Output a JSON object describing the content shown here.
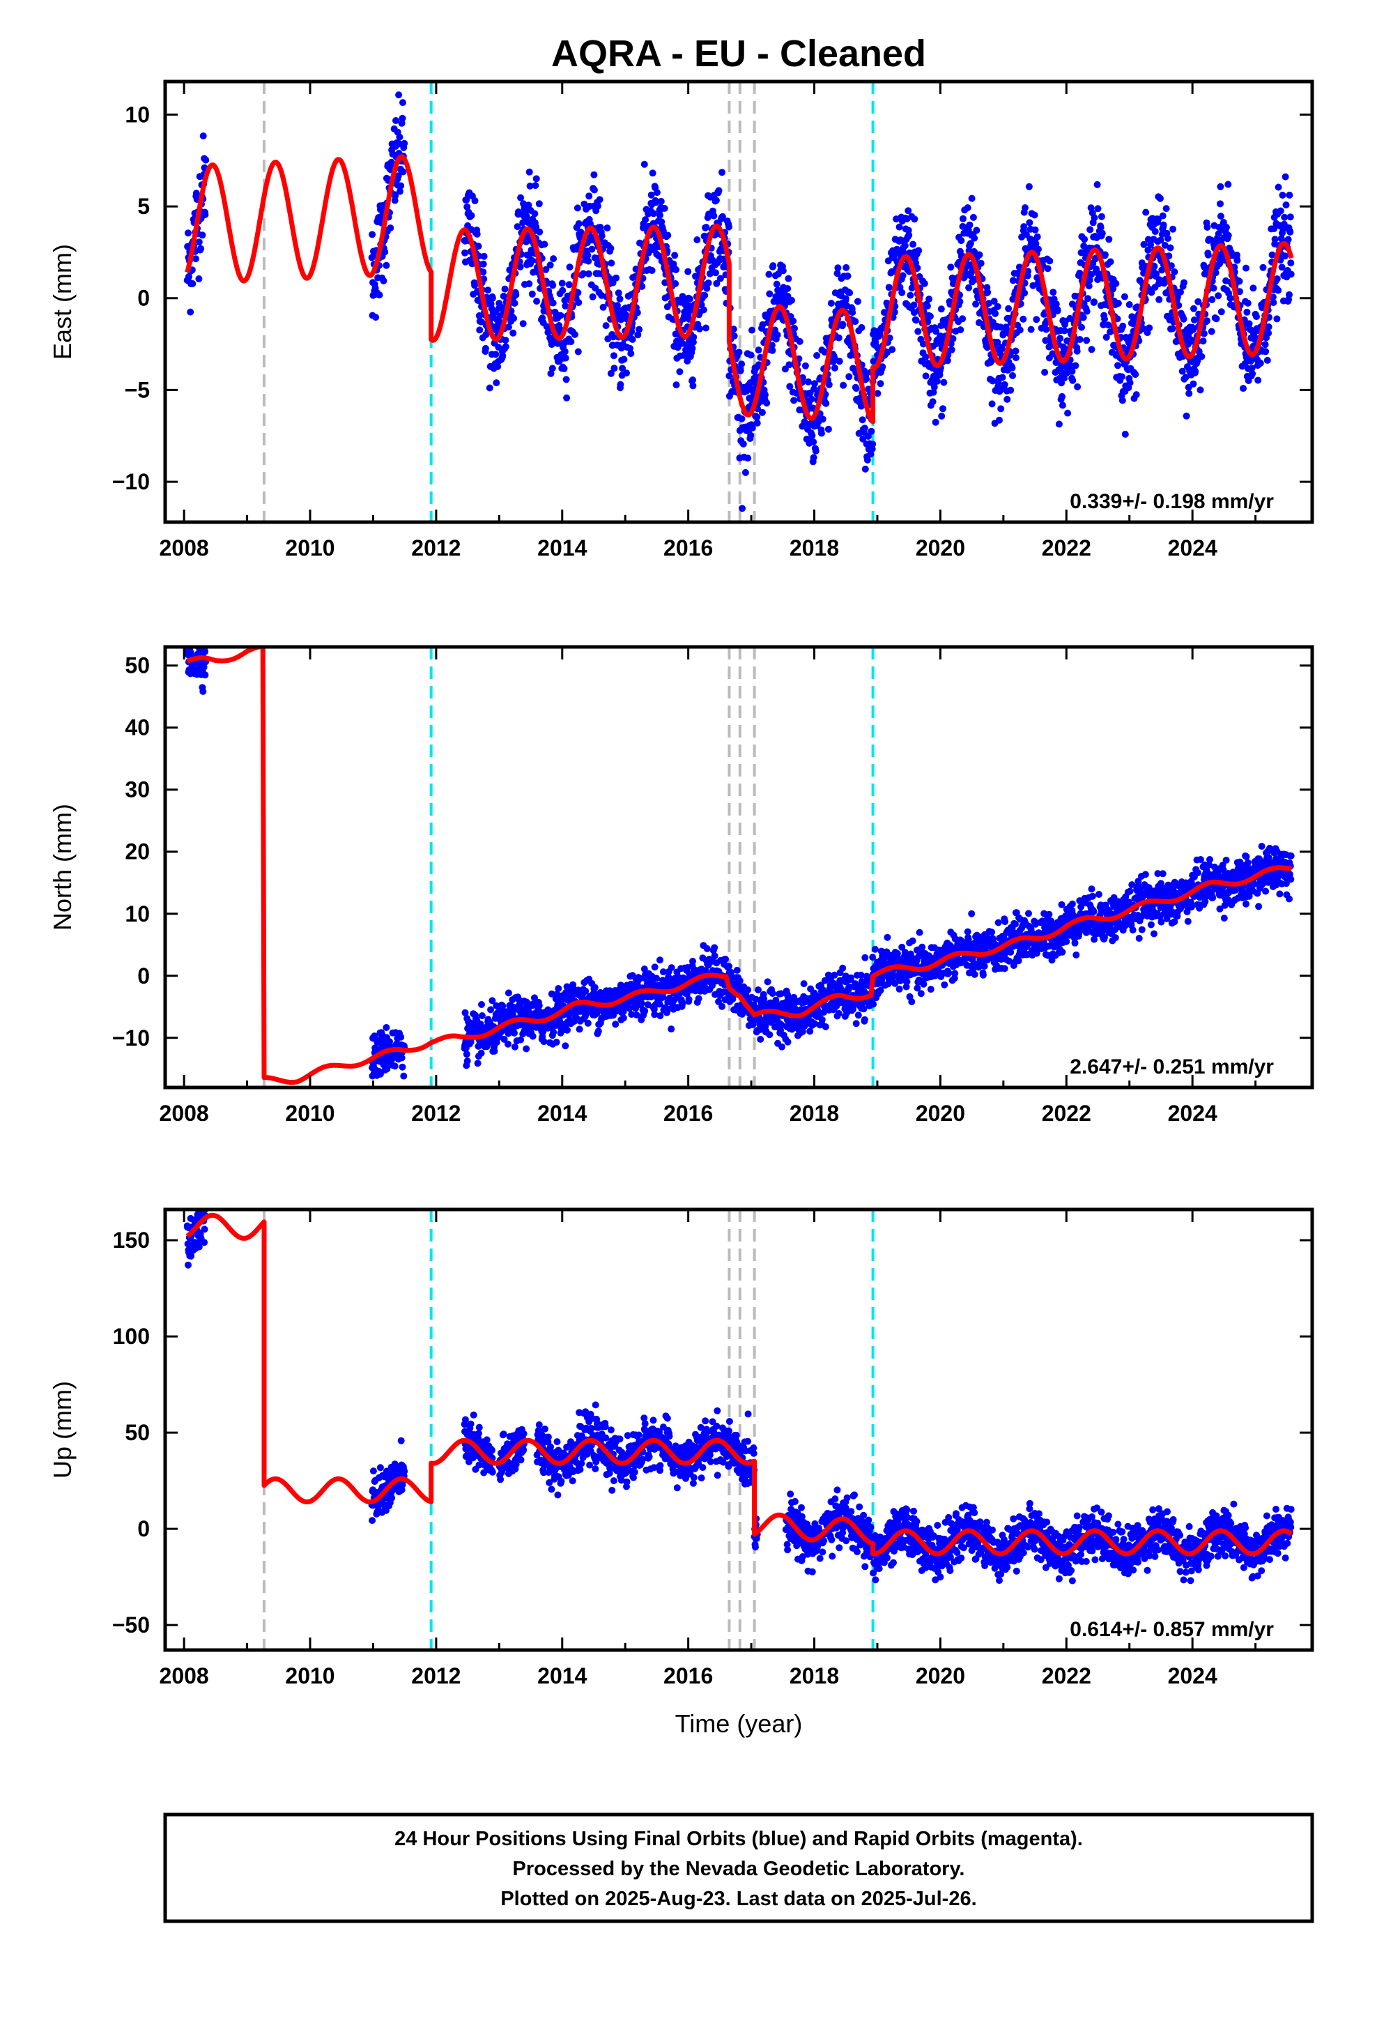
{
  "title": "AQRA  - EU - Cleaned",
  "xlabel": "Time (year)",
  "footer": {
    "lines": [
      "24 Hour Positions Using Final Orbits (blue) and Rapid Orbits (magenta).",
      "Processed by the Nevada Geodetic Laboratory.",
      "Plotted on 2025-Aug-23. Last data on 2025-Jul-26."
    ]
  },
  "colors": {
    "data": "#0000ff",
    "model": "#ff0000",
    "break_equipment": "#00e5ee",
    "break_earthquake": "#bbbbbb"
  },
  "chart_data": [
    {
      "type": "scatter",
      "component": "East",
      "ylabel": "East (mm)",
      "rate": "0.339+/- 0.198 mm/yr",
      "xlim": [
        2007.7,
        2025.9
      ],
      "ylim": [
        -12.2,
        11.8
      ],
      "xticks": [
        2008,
        2010,
        2012,
        2014,
        2016,
        2018,
        2020,
        2022,
        2024
      ],
      "yticks": [
        -10,
        -5,
        0,
        5,
        10
      ],
      "ytick_labels": [
        "−10",
        "−5",
        "0",
        "5",
        "10"
      ],
      "breaks_equipment": [
        2011.92,
        2018.93
      ],
      "breaks_earthquake": [
        2009.27,
        2016.65,
        2016.82,
        2017.05
      ],
      "data_segments": [
        [
          2008.05,
          2008.35
        ],
        [
          2010.98,
          2011.5
        ],
        [
          2012.45,
          2025.57
        ]
      ],
      "model_segments": [
        {
          "x0": 2008.05,
          "x1": 2011.92,
          "offset": 4.0,
          "amp": 3.2,
          "trend": 0.15
        },
        {
          "x0": 2011.92,
          "x1": 2016.65,
          "offset": 0.7,
          "amp": 3.0,
          "trend": 0.05
        },
        {
          "x0": 2016.65,
          "x1": 2018.93,
          "offset": -3.3,
          "amp": 3.0,
          "trend": -0.2
        },
        {
          "x0": 2018.93,
          "x1": 2025.57,
          "offset": -0.8,
          "amp": 3.0,
          "trend": 0.12
        }
      ],
      "scatter_sd": 1.4
    },
    {
      "type": "scatter",
      "component": "North",
      "ylabel": "North (mm)",
      "rate": "2.647+/- 0.251 mm/yr",
      "xlim": [
        2007.7,
        2025.9
      ],
      "ylim": [
        -18,
        53
      ],
      "xticks": [
        2008,
        2010,
        2012,
        2014,
        2016,
        2018,
        2020,
        2022,
        2024
      ],
      "yticks": [
        -10,
        0,
        10,
        20,
        30,
        40,
        50
      ],
      "ytick_labels": [
        "−10",
        "0",
        "10",
        "20",
        "30",
        "40",
        "50"
      ],
      "breaks_equipment": [
        2011.92,
        2018.93
      ],
      "breaks_earthquake": [
        2009.27,
        2016.65,
        2016.82,
        2017.05
      ],
      "data_segments": [
        [
          2008.05,
          2008.35
        ],
        [
          2010.98,
          2011.5
        ],
        [
          2012.45,
          2025.57
        ]
      ],
      "model_points": [
        [
          2008.05,
          50.5
        ],
        [
          2008.5,
          50.8
        ],
        [
          2009.0,
          52.3
        ],
        [
          2009.25,
          52.5
        ],
        [
          2009.27,
          -17.0
        ],
        [
          2009.8,
          -16.5
        ],
        [
          2010.6,
          -14.2
        ],
        [
          2011.5,
          -12.0
        ],
        [
          2011.92,
          -10.5
        ],
        [
          2012.4,
          -10.2
        ],
        [
          2013.0,
          -8.3
        ],
        [
          2013.6,
          -7.0
        ],
        [
          2014.2,
          -5.0
        ],
        [
          2014.8,
          -4.0
        ],
        [
          2015.3,
          -3.0
        ],
        [
          2016.0,
          -1.2
        ],
        [
          2016.6,
          0.2
        ],
        [
          2016.65,
          -1.5
        ],
        [
          2016.82,
          -2.8
        ],
        [
          2017.05,
          -6.5
        ],
        [
          2017.8,
          -5.8
        ],
        [
          2018.4,
          -3.5
        ],
        [
          2018.9,
          -2.8
        ],
        [
          2018.93,
          0.2
        ],
        [
          2019.8,
          1.8
        ],
        [
          2020.6,
          3.8
        ],
        [
          2021.5,
          6.0
        ],
        [
          2022.0,
          8.0
        ],
        [
          2022.8,
          10.0
        ],
        [
          2023.5,
          12.0
        ],
        [
          2024.3,
          14.5
        ],
        [
          2025.0,
          16.0
        ],
        [
          2025.57,
          17.5
        ]
      ],
      "scatter_sd": 1.8
    },
    {
      "type": "scatter",
      "component": "Up",
      "ylabel": "Up (mm)",
      "rate": "0.614+/- 0.857 mm/yr",
      "xlim": [
        2007.7,
        2025.9
      ],
      "ylim": [
        -63,
        166
      ],
      "xticks": [
        2008,
        2010,
        2012,
        2014,
        2016,
        2018,
        2020,
        2022,
        2024
      ],
      "yticks": [
        -50,
        0,
        50,
        100,
        150
      ],
      "ytick_labels": [
        "−50",
        "0",
        "50",
        "100",
        "150"
      ],
      "breaks_equipment": [
        2011.92,
        2018.93
      ],
      "breaks_earthquake": [
        2009.27,
        2016.65,
        2016.82,
        2017.05
      ],
      "data_segments": [
        [
          2008.05,
          2008.35
        ],
        [
          2010.98,
          2011.5
        ],
        [
          2012.45,
          2012.9
        ],
        [
          2013.0,
          2013.4
        ],
        [
          2013.6,
          2017.1
        ],
        [
          2017.55,
          2025.57
        ]
      ],
      "model_segments": [
        {
          "x0": 2008.05,
          "x1": 2009.27,
          "offset": 157,
          "amp": 6,
          "trend": 0
        },
        {
          "x0": 2009.27,
          "x1": 2011.92,
          "offset": 20,
          "amp": 6,
          "trend": 0
        },
        {
          "x0": 2011.92,
          "x1": 2016.65,
          "offset": 40,
          "amp": 6,
          "trend": 0
        },
        {
          "x0": 2016.65,
          "x1": 2017.05,
          "offset": 40,
          "amp": 6,
          "trend": 0
        },
        {
          "x0": 2017.05,
          "x1": 2018.93,
          "offset": 2,
          "amp": 6,
          "trend": -2
        },
        {
          "x0": 2018.93,
          "x1": 2025.57,
          "offset": -7,
          "amp": 6,
          "trend": 0
        }
      ],
      "scatter_sd": 6
    }
  ]
}
